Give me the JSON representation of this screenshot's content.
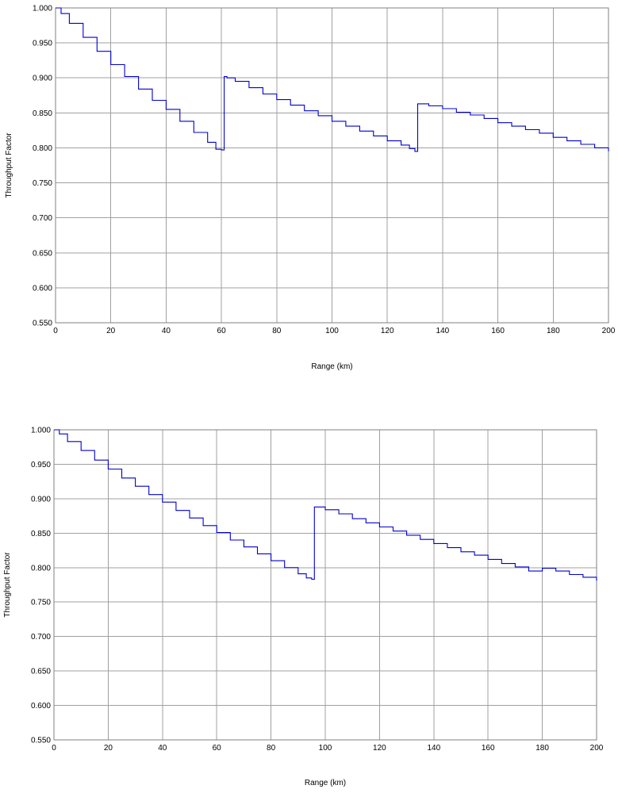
{
  "chart_data": [
    {
      "type": "line",
      "xlabel": "Range (km)",
      "ylabel": "Throughput Factor",
      "xlim": [
        0,
        200
      ],
      "ylim": [
        0.55,
        1.0
      ],
      "x_ticks": [
        0,
        20,
        40,
        60,
        80,
        100,
        120,
        140,
        160,
        180,
        200
      ],
      "y_ticks": [
        0.55,
        0.6,
        0.65,
        0.7,
        0.75,
        0.8,
        0.85,
        0.9,
        0.95,
        1.0
      ],
      "x_tick_labels": [
        "0",
        "20",
        "40",
        "60",
        "80",
        "100",
        "120",
        "140",
        "160",
        "180",
        "200"
      ],
      "y_tick_labels": [
        "0.550",
        "0.600",
        "0.650",
        "0.700",
        "0.750",
        "0.800",
        "0.850",
        "0.900",
        "0.950",
        "1.000"
      ],
      "grid": true,
      "series_color": "#0000cc",
      "series": [
        {
          "x": [
            0,
            2,
            5,
            10,
            15,
            20,
            25,
            30,
            35,
            40,
            45,
            50,
            55,
            58,
            60,
            60.5,
            61,
            62,
            65,
            70,
            75,
            80,
            85,
            90,
            95,
            100,
            105,
            110,
            115,
            120,
            125,
            128,
            130,
            130.5,
            131,
            132,
            135,
            140,
            145,
            150,
            155,
            160,
            165,
            170,
            175,
            180,
            185,
            190,
            195,
            200
          ],
          "y": [
            1.0,
            0.992,
            0.978,
            0.958,
            0.938,
            0.919,
            0.902,
            0.884,
            0.868,
            0.855,
            0.838,
            0.822,
            0.808,
            0.798,
            0.797,
            0.797,
            0.902,
            0.9,
            0.895,
            0.886,
            0.877,
            0.869,
            0.861,
            0.853,
            0.846,
            0.838,
            0.831,
            0.824,
            0.817,
            0.81,
            0.804,
            0.799,
            0.795,
            0.795,
            0.863,
            0.863,
            0.86,
            0.856,
            0.851,
            0.847,
            0.842,
            0.836,
            0.831,
            0.826,
            0.821,
            0.815,
            0.81,
            0.805,
            0.8,
            0.795
          ]
        }
      ]
    },
    {
      "type": "line",
      "xlabel": "Range (km)",
      "ylabel": "Throughput Factor",
      "xlim": [
        0,
        200
      ],
      "ylim": [
        0.55,
        1.0
      ],
      "x_ticks": [
        0,
        20,
        40,
        60,
        80,
        100,
        120,
        140,
        160,
        180,
        200
      ],
      "y_ticks": [
        0.55,
        0.6,
        0.65,
        0.7,
        0.75,
        0.8,
        0.85,
        0.9,
        0.95,
        1.0
      ],
      "x_tick_labels": [
        "0",
        "20",
        "40",
        "60",
        "80",
        "100",
        "120",
        "140",
        "160",
        "180",
        "200"
      ],
      "y_tick_labels": [
        "0.550",
        "0.600",
        "0.650",
        "0.700",
        "0.750",
        "0.800",
        "0.850",
        "0.900",
        "0.950",
        "1.000"
      ],
      "grid": true,
      "series_color": "#0000cc",
      "series": [
        {
          "x": [
            0,
            2,
            5,
            10,
            15,
            20,
            25,
            30,
            35,
            40,
            45,
            50,
            55,
            60,
            65,
            70,
            75,
            80,
            85,
            90,
            93,
            95,
            95.5,
            96,
            97,
            100,
            105,
            110,
            115,
            120,
            125,
            130,
            135,
            140,
            145,
            150,
            155,
            160,
            165,
            170,
            175,
            180,
            185,
            190,
            195,
            200
          ],
          "y": [
            1.0,
            0.994,
            0.983,
            0.97,
            0.956,
            0.943,
            0.93,
            0.918,
            0.906,
            0.895,
            0.883,
            0.872,
            0.861,
            0.851,
            0.84,
            0.83,
            0.82,
            0.81,
            0.8,
            0.791,
            0.785,
            0.783,
            0.783,
            0.888,
            0.888,
            0.884,
            0.878,
            0.871,
            0.865,
            0.859,
            0.853,
            0.847,
            0.841,
            0.835,
            0.829,
            0.823,
            0.818,
            0.812,
            0.806,
            0.801,
            0.795,
            0.799,
            0.795,
            0.79,
            0.786,
            0.781
          ]
        }
      ]
    }
  ]
}
